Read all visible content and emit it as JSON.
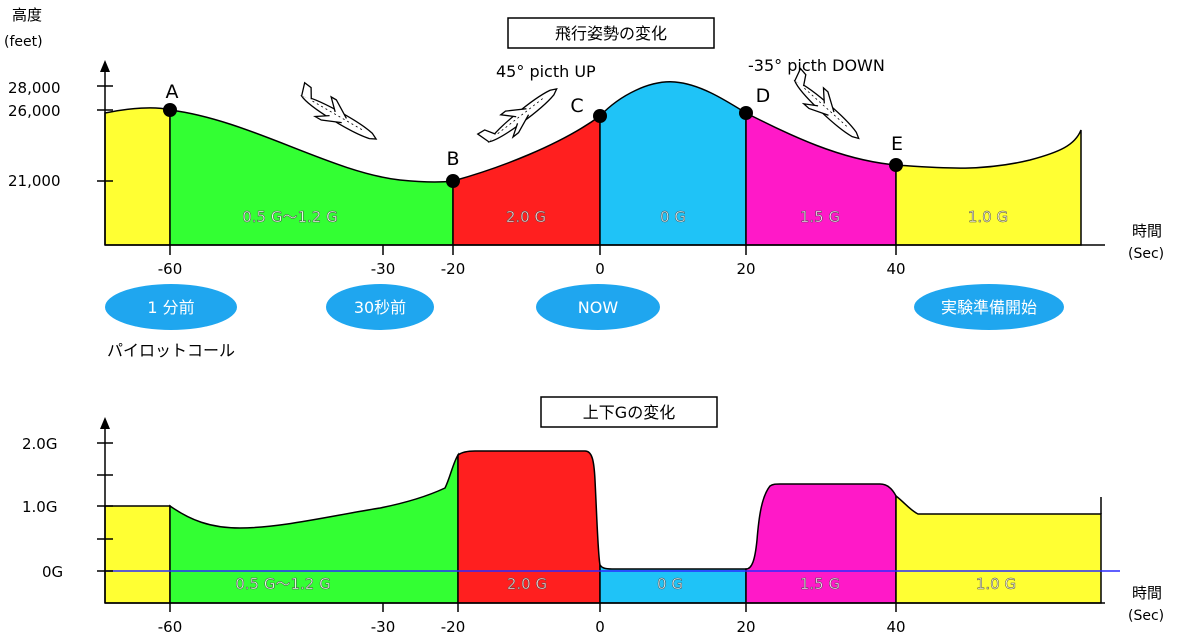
{
  "top_chart": {
    "title": "飛行姿勢の変化",
    "ylabel_line1": "高度",
    "ylabel_line2": "(feet)",
    "xlabel_line1": "時間",
    "xlabel_line2": "(Sec)",
    "yticks": [
      "28,000",
      "26,000",
      "21,000"
    ],
    "xticks": [
      "-60",
      "-30",
      "-20",
      "0",
      "20",
      "40"
    ],
    "points": [
      {
        "label": "A",
        "time": -60,
        "altitude": 26000
      },
      {
        "label": "B",
        "time": -20,
        "altitude": 21000
      },
      {
        "label": "C",
        "time": 0,
        "altitude": 26000
      },
      {
        "label": "D",
        "time": 20,
        "altitude": 26000
      },
      {
        "label": "E",
        "time": 40,
        "altitude": 22000
      }
    ],
    "annotations": {
      "pitch_up": "45°  picth UP",
      "pitch_down": "-35°  picth DOWN"
    },
    "segments": [
      {
        "name": "pre",
        "label": "",
        "color": "#ffff33"
      },
      {
        "name": "ab",
        "label": "0.5 G～1.2 G",
        "color": "#33ff33"
      },
      {
        "name": "bc",
        "label": "2.0 G",
        "color": "#ff1f1f"
      },
      {
        "name": "cd",
        "label": "0 G",
        "color": "#1fc3f7"
      },
      {
        "name": "de",
        "label": "1.5 G",
        "color": "#ff19c8"
      },
      {
        "name": "post",
        "label": "1.0 G",
        "color": "#ffff33"
      }
    ]
  },
  "timeline": {
    "items": [
      "1 分前",
      "30秒前",
      "NOW",
      "実験準備開始"
    ],
    "pilot_call": "パイロットコール",
    "color": "#1fa6ef"
  },
  "bottom_chart": {
    "title": "上下Gの変化",
    "xlabel_line1": "時間",
    "xlabel_line2": "(Sec)",
    "yticks": [
      "2.0G",
      "1.0G",
      "0G"
    ],
    "xticks": [
      "-60",
      "-30",
      "-20",
      "0",
      "20",
      "40"
    ],
    "segments": [
      {
        "name": "pre",
        "label": "",
        "g": 1.0,
        "color": "#ffff33"
      },
      {
        "name": "ab",
        "label": "0.5 G～1.2 G",
        "g_range": [
          0.5,
          1.2
        ],
        "color": "#33ff33"
      },
      {
        "name": "bc",
        "label": "2.0 G",
        "g": 2.0,
        "color": "#ff1f1f"
      },
      {
        "name": "cd",
        "label": "0 G",
        "g": 0.0,
        "color": "#1fc3f7"
      },
      {
        "name": "de",
        "label": "1.5 G",
        "g": 1.5,
        "color": "#ff19c8"
      },
      {
        "name": "post",
        "label": "1.0 G",
        "g": 1.0,
        "color": "#ffff33"
      }
    ],
    "zero_line_color": "#2a2aff"
  }
}
